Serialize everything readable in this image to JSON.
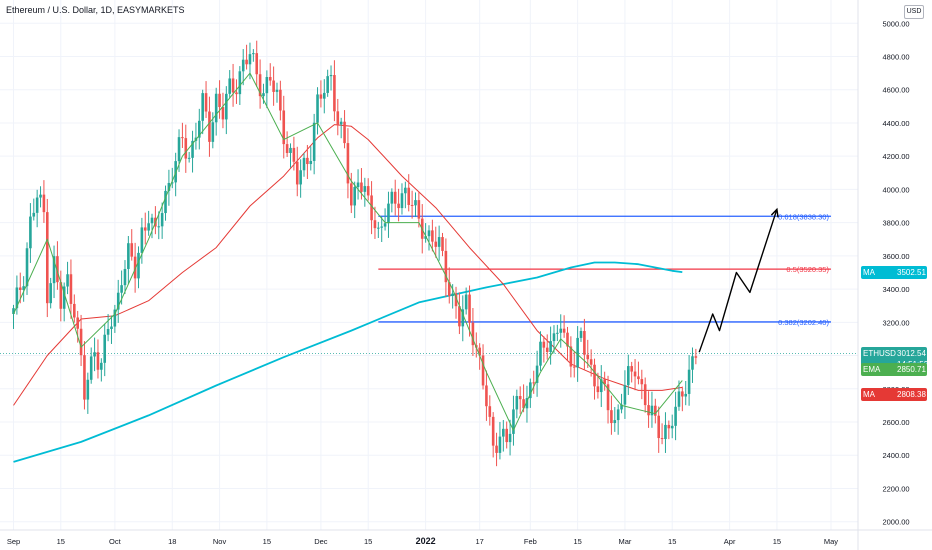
{
  "title": "Ethereum / U.S. Dollar, 1D, EASYMARKETS",
  "currency_button": "USD",
  "chart_data": {
    "type": "candlestick",
    "symbol": "ETHUSD",
    "y_ticks": [
      2000,
      2200,
      2400,
      2600,
      2800,
      3000,
      3200,
      3400,
      3600,
      3800,
      4000,
      4200,
      4400,
      4600,
      4800,
      5000
    ],
    "y_tick_labels": [
      "2000.00",
      "2200.00",
      "2400.00",
      "2600.00",
      "2800.00",
      "3000.00",
      "3200.00",
      "3400.00",
      "3600.00",
      "3800.00",
      "4000.00",
      "4200.00",
      "4400.00",
      "4600.00",
      "4800.00",
      "5000.00"
    ],
    "ylim": [
      1950,
      5140
    ],
    "x_labels": [
      {
        "label": "Sep",
        "day": 0
      },
      {
        "label": "15",
        "day": 14
      },
      {
        "label": "Oct",
        "day": 30
      },
      {
        "label": "18",
        "day": 47
      },
      {
        "label": "Nov",
        "day": 61
      },
      {
        "label": "15",
        "day": 75
      },
      {
        "label": "Dec",
        "day": 91
      },
      {
        "label": "15",
        "day": 105
      },
      {
        "label": "2022",
        "day": 122
      },
      {
        "label": "17",
        "day": 138
      },
      {
        "label": "Feb",
        "day": 153
      },
      {
        "label": "15",
        "day": 167
      },
      {
        "label": "Mar",
        "day": 181
      },
      {
        "label": "15",
        "day": 195
      },
      {
        "label": "Apr",
        "day": 212
      },
      {
        "label": "15",
        "day": 226
      },
      {
        "label": "May",
        "day": 242
      }
    ],
    "close_path": [
      [
        0,
        3250
      ],
      [
        3,
        3500
      ],
      [
        5,
        3800
      ],
      [
        7,
        3950
      ],
      [
        9,
        3850
      ],
      [
        10,
        3400
      ],
      [
        12,
        3550
      ],
      [
        14,
        3300
      ],
      [
        16,
        3450
      ],
      [
        18,
        3300
      ],
      [
        20,
        2950
      ],
      [
        21,
        2750
      ],
      [
        24,
        3050
      ],
      [
        26,
        2950
      ],
      [
        28,
        3150
      ],
      [
        30,
        3250
      ],
      [
        32,
        3500
      ],
      [
        34,
        3600
      ],
      [
        36,
        3500
      ],
      [
        38,
        3750
      ],
      [
        40,
        3850
      ],
      [
        42,
        3700
      ],
      [
        44,
        3900
      ],
      [
        46,
        4050
      ],
      [
        48,
        4150
      ],
      [
        50,
        4300
      ],
      [
        52,
        4200
      ],
      [
        54,
        4350
      ],
      [
        56,
        4500
      ],
      [
        58,
        4350
      ],
      [
        60,
        4550
      ],
      [
        62,
        4450
      ],
      [
        64,
        4600
      ],
      [
        66,
        4650
      ],
      [
        68,
        4750
      ],
      [
        70,
        4800
      ],
      [
        72,
        4700
      ],
      [
        74,
        4600
      ],
      [
        76,
        4650
      ],
      [
        78,
        4550
      ],
      [
        80,
        4350
      ],
      [
        82,
        4200
      ],
      [
        84,
        4050
      ],
      [
        86,
        4150
      ],
      [
        88,
        4250
      ],
      [
        90,
        4500
      ],
      [
        92,
        4600
      ],
      [
        94,
        4700
      ],
      [
        96,
        4400
      ],
      [
        98,
        4250
      ],
      [
        100,
        3900
      ],
      [
        102,
        4100
      ],
      [
        104,
        3950
      ],
      [
        106,
        3850
      ],
      [
        108,
        3750
      ],
      [
        110,
        3850
      ],
      [
        112,
        3900
      ],
      [
        114,
        3950
      ],
      [
        116,
        4000
      ],
      [
        118,
        3900
      ],
      [
        120,
        3800
      ],
      [
        122,
        3750
      ],
      [
        124,
        3700
      ],
      [
        126,
        3650
      ],
      [
        128,
        3500
      ],
      [
        130,
        3350
      ],
      [
        132,
        3200
      ],
      [
        134,
        3300
      ],
      [
        136,
        3150
      ],
      [
        138,
        2950
      ],
      [
        140,
        2700
      ],
      [
        142,
        2450
      ],
      [
        144,
        2550
      ],
      [
        146,
        2450
      ],
      [
        148,
        2650
      ],
      [
        150,
        2800
      ],
      [
        152,
        2700
      ],
      [
        154,
        2850
      ],
      [
        156,
        3050
      ],
      [
        158,
        3100
      ],
      [
        160,
        3050
      ],
      [
        162,
        3200
      ],
      [
        164,
        3050
      ],
      [
        166,
        2950
      ],
      [
        168,
        3100
      ],
      [
        170,
        3000
      ],
      [
        172,
        2850
      ],
      [
        174,
        2800
      ],
      [
        176,
        2700
      ],
      [
        178,
        2600
      ],
      [
        180,
        2750
      ],
      [
        182,
        2850
      ],
      [
        184,
        2950
      ],
      [
        186,
        2800
      ],
      [
        188,
        2650
      ],
      [
        190,
        2600
      ],
      [
        192,
        2550
      ],
      [
        194,
        2550
      ],
      [
        196,
        2650
      ],
      [
        198,
        2800
      ],
      [
        200,
        2900
      ],
      [
        202,
        3000
      ]
    ],
    "series": [
      {
        "name": "EMA",
        "value": 2850.71,
        "color": "#4caf50"
      },
      {
        "name": "MA",
        "value": 2808.38,
        "color": "#e53935"
      }
    ],
    "ma200_path": [
      [
        0,
        2360
      ],
      [
        20,
        2480
      ],
      [
        40,
        2640
      ],
      [
        60,
        2820
      ],
      [
        80,
        2990
      ],
      [
        100,
        3150
      ],
      [
        120,
        3320
      ],
      [
        140,
        3410
      ],
      [
        155,
        3470
      ],
      [
        165,
        3530
      ],
      [
        172,
        3560
      ],
      [
        178,
        3560
      ],
      [
        185,
        3550
      ],
      [
        190,
        3530
      ],
      [
        195,
        3510
      ],
      [
        198,
        3502
      ]
    ],
    "ma50_path": [
      [
        0,
        2700
      ],
      [
        10,
        3000
      ],
      [
        20,
        3220
      ],
      [
        30,
        3240
      ],
      [
        40,
        3330
      ],
      [
        50,
        3500
      ],
      [
        60,
        3650
      ],
      [
        70,
        3900
      ],
      [
        80,
        4080
      ],
      [
        90,
        4310
      ],
      [
        95,
        4390
      ],
      [
        100,
        4380
      ],
      [
        105,
        4300
      ],
      [
        115,
        4080
      ],
      [
        125,
        3890
      ],
      [
        135,
        3650
      ],
      [
        145,
        3430
      ],
      [
        155,
        3150
      ],
      [
        165,
        2950
      ],
      [
        175,
        2860
      ],
      [
        185,
        2790
      ],
      [
        192,
        2790
      ],
      [
        198,
        2808
      ]
    ],
    "ema_fast_path": [
      [
        0,
        3250
      ],
      [
        10,
        3700
      ],
      [
        20,
        3050
      ],
      [
        30,
        3250
      ],
      [
        40,
        3700
      ],
      [
        50,
        4200
      ],
      [
        60,
        4450
      ],
      [
        70,
        4700
      ],
      [
        80,
        4300
      ],
      [
        90,
        4400
      ],
      [
        100,
        4050
      ],
      [
        110,
        3800
      ],
      [
        120,
        3800
      ],
      [
        130,
        3400
      ],
      [
        140,
        2900
      ],
      [
        148,
        2550
      ],
      [
        156,
        2900
      ],
      [
        162,
        3100
      ],
      [
        170,
        2950
      ],
      [
        180,
        2700
      ],
      [
        190,
        2650
      ],
      [
        198,
        2850
      ]
    ],
    "fibonacci": [
      {
        "label": "0.618(3838.30)",
        "value": 3838.3,
        "color": "#2962ff"
      },
      {
        "label": "0.5(3520.35)",
        "value": 3520.35,
        "color": "#f23645"
      },
      {
        "label": "0.382(3202.40)",
        "value": 3202.4,
        "color": "#2962ff"
      }
    ],
    "fib_start_day": 108,
    "projection_path": [
      [
        203,
        3020
      ],
      [
        207,
        3250
      ],
      [
        209,
        3150
      ],
      [
        214,
        3500
      ],
      [
        218,
        3380
      ],
      [
        226,
        3880
      ]
    ],
    "current_price": {
      "symbol": "ETHUSD",
      "price": "3012.54",
      "countdown": "14:51:52",
      "color": "#26a69a"
    },
    "ma200_badge": {
      "name": "MA",
      "price": "3502.51",
      "color": "#00bcd4"
    },
    "ema_badge": {
      "name": "EMA",
      "price": "2850.71",
      "color": "#4caf50"
    },
    "ma_badge": {
      "name": "MA",
      "price": "2808.38",
      "color": "#e53935"
    },
    "up_color": "#26a69a",
    "down_color": "#ef5350",
    "bg_color": "#ffffff",
    "grid": true
  }
}
